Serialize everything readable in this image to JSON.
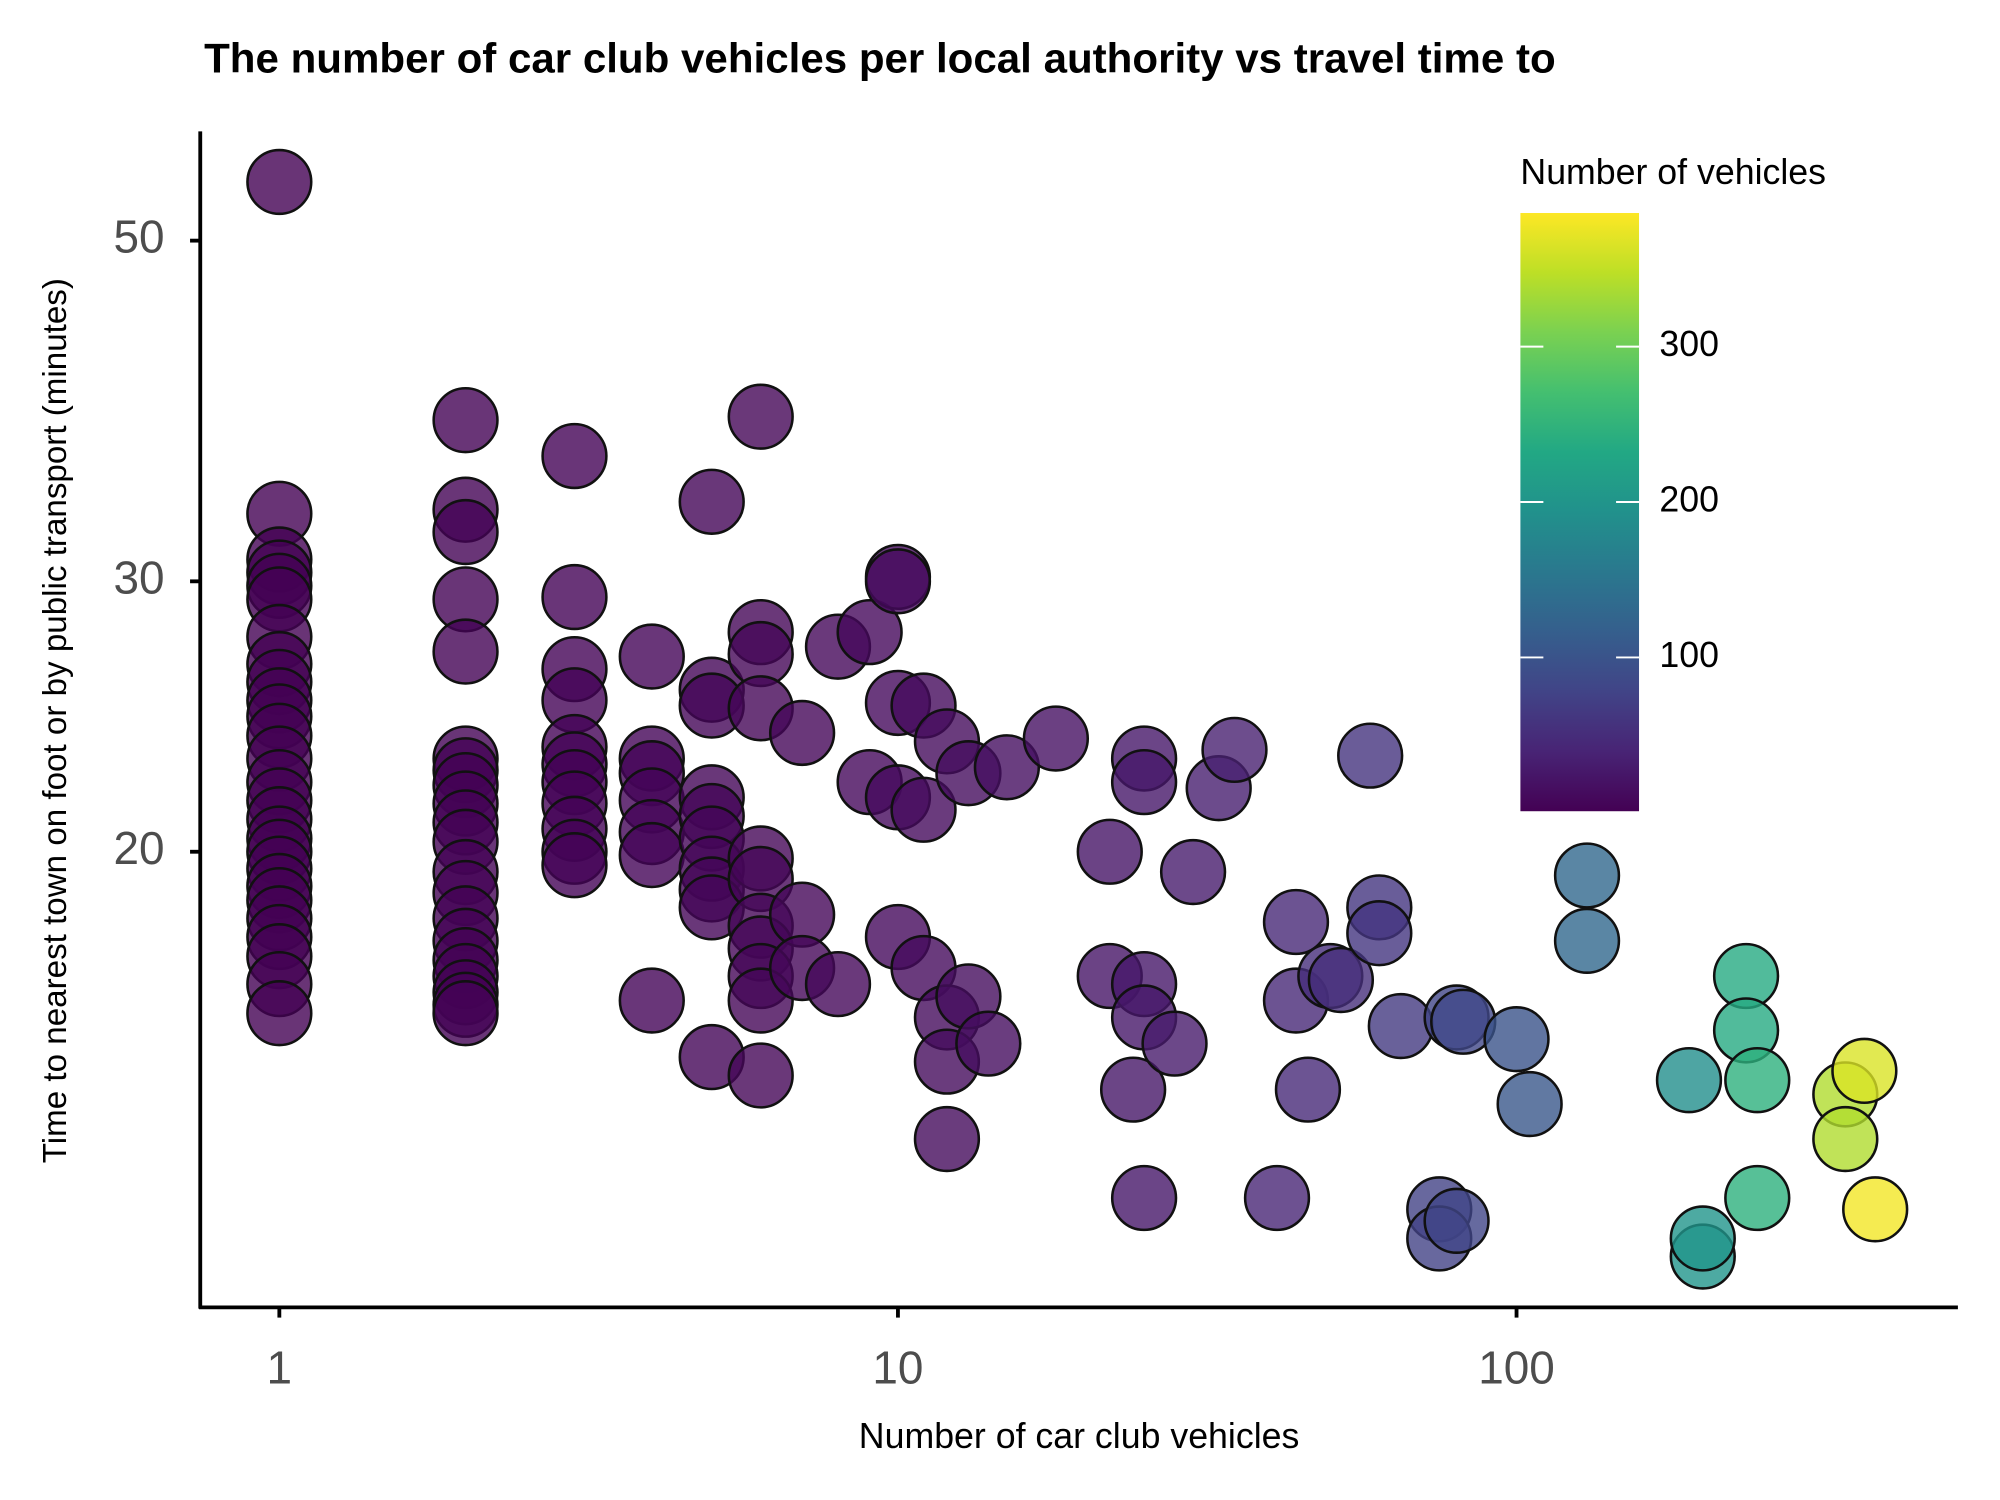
{
  "chart_data": {
    "type": "scatter",
    "title": "The number of car club vehicles per local authority vs travel time to",
    "x_label": "Number of car club vehicles",
    "y_label": "Time to nearest town on foot or by public transport (minutes)",
    "xscale": "log",
    "yscale": "log",
    "xlim": [
      0.745,
      517
    ],
    "ylim": [
      10.1,
      58.9
    ],
    "xticks": [
      1,
      10,
      100
    ],
    "yticks": [
      20,
      30,
      50
    ],
    "x": [
      1,
      1,
      1,
      1,
      1,
      1,
      1,
      1,
      1,
      1,
      1,
      1,
      1,
      1,
      1,
      1,
      1,
      1,
      1,
      1,
      1,
      1,
      1,
      1,
      1,
      1,
      2,
      2,
      2,
      2,
      2,
      2,
      2,
      2,
      2,
      2,
      2,
      2,
      2,
      2,
      2,
      2,
      2,
      2,
      2,
      2,
      3,
      3,
      3,
      3,
      3,
      3,
      3,
      3,
      3,
      3,
      3,
      4,
      4,
      4,
      4,
      4,
      4,
      4,
      5,
      5,
      5,
      5,
      5,
      5,
      5,
      5,
      5,
      5,
      6,
      6,
      6,
      6,
      6,
      6,
      6,
      6,
      6,
      6,
      6,
      7,
      7,
      7,
      8,
      8,
      9,
      9,
      10,
      10,
      10,
      10,
      10,
      11,
      11,
      11,
      12,
      12,
      12,
      12,
      13,
      13,
      14,
      15,
      18,
      22,
      22,
      24,
      25,
      25,
      25,
      25,
      25,
      28,
      30,
      33,
      35,
      41,
      44,
      44,
      46,
      50,
      52,
      58,
      60,
      60,
      65,
      75,
      75,
      80,
      80,
      82,
      100,
      105,
      130,
      130,
      190,
      200,
      200,
      235,
      235,
      245,
      245,
      340,
      340,
      365,
      380
    ],
    "y": [
      54.6,
      33.2,
      31,
      30.4,
      29.8,
      29.2,
      27.6,
      26.5,
      25.8,
      25.1,
      24.5,
      23.8,
      23,
      22.2,
      21.6,
      21,
      20.4,
      20,
      19.5,
      19,
      18.6,
      18.1,
      17.6,
      17.1,
      16.4,
      15.7,
      38.2,
      33.4,
      32.3,
      29.2,
      27,
      23,
      22.6,
      22.1,
      21.5,
      20.9,
      20.3,
      19.4,
      18.8,
      18.1,
      17.5,
      17,
      16.6,
      16.2,
      15.9,
      15.7,
      36.2,
      29.3,
      26.3,
      25.1,
      23.4,
      22.8,
      22.2,
      21.5,
      20.7,
      20,
      19.6,
      26.8,
      23,
      22.5,
      21.6,
      20.6,
      19.9,
      16,
      33.8,
      25.5,
      24.9,
      21.7,
      21.1,
      20.4,
      19.5,
      18.9,
      18.4,
      14.7,
      38.4,
      27.8,
      26.9,
      24.8,
      19.8,
      19.2,
      17.9,
      17.3,
      16.6,
      16,
      14.3,
      23.9,
      18.2,
      16.8,
      27.2,
      16.4,
      27.8,
      22.2,
      30.2,
      30,
      25,
      21.7,
      17.6,
      24.9,
      21.3,
      16.8,
      23.6,
      15.6,
      14.6,
      13,
      22.5,
      16.1,
      15,
      22.7,
      23.7,
      20,
      16.6,
      14,
      23,
      22.2,
      16.4,
      15.6,
      11.9,
      15,
      19.4,
      22,
      23.3,
      11.9,
      18,
      16,
      14,
      16.6,
      16.5,
      23.1,
      18.4,
      17.7,
      15.4,
      11.7,
      11.2,
      15.6,
      11.5,
      15.5,
      15.1,
      13.7,
      19.3,
      17.5,
      14.2,
      10.9,
      11.2,
      16.6,
      15.3,
      14.2,
      11.9,
      13.9,
      13,
      14.4,
      11.7
    ],
    "colorbar": {
      "title": "Number of vehicles",
      "colormap": "viridis",
      "lim": [
        1,
        386
      ],
      "ticks": [
        100,
        200,
        300
      ]
    }
  }
}
